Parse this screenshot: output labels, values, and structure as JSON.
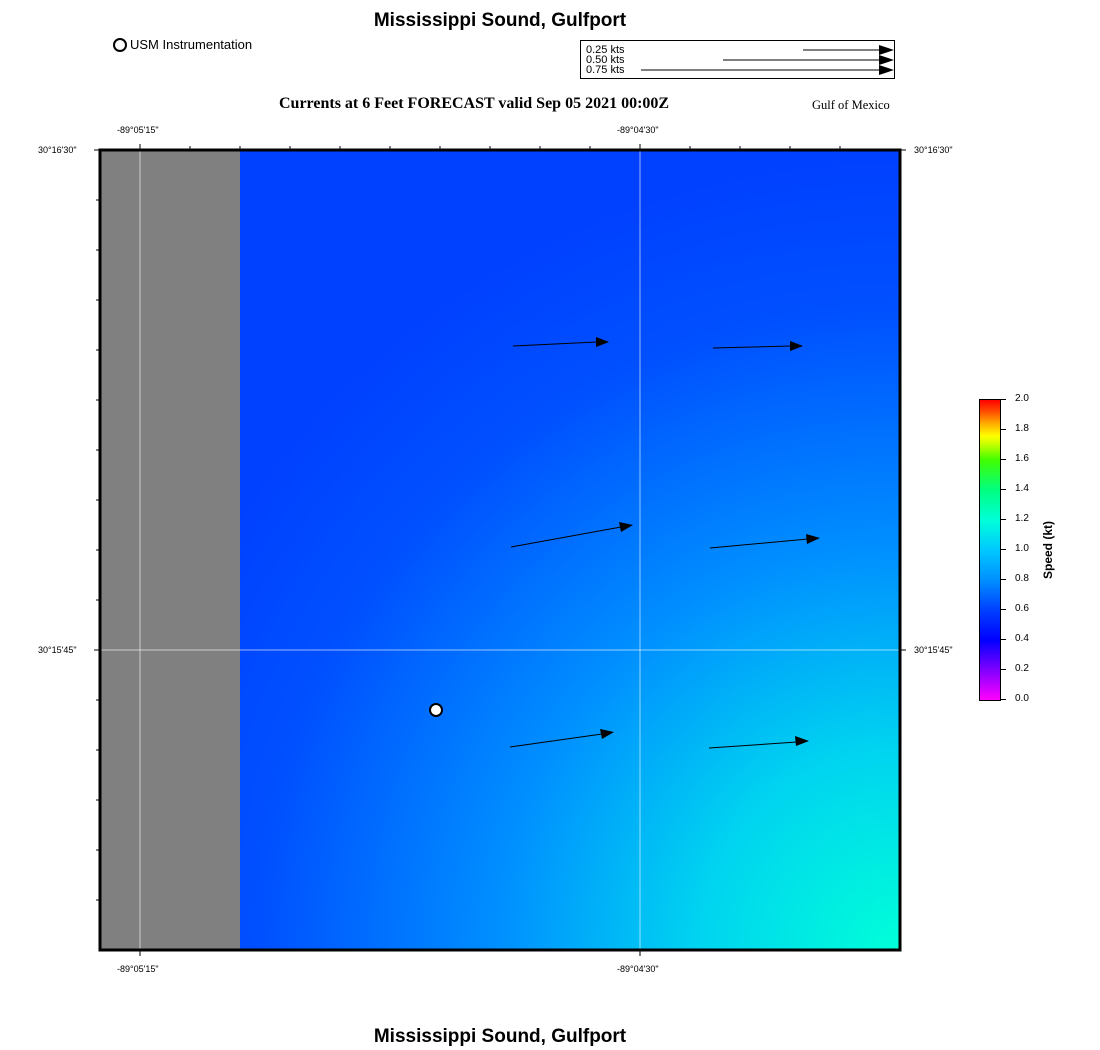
{
  "header": {
    "title": "Mississippi Sound, Gulfport",
    "forecast_title": "Currents at 6 Feet FORECAST valid Sep 05 2021 00:00Z",
    "region_label": "Gulf of Mexico"
  },
  "legend": {
    "usm_label": "USM Instrumentation"
  },
  "reference_vectors": [
    {
      "label": "0.25 kts",
      "speed_kts": 0.25
    },
    {
      "label": "0.50 kts",
      "speed_kts": 0.5
    },
    {
      "label": "0.75 kts",
      "speed_kts": 0.75
    }
  ],
  "axes": {
    "lon_ticks": [
      "-89°05'15\"",
      "-89°04'30\""
    ],
    "lat_ticks": [
      "30°16'30\"",
      "30°15'45\""
    ]
  },
  "colorbar": {
    "title": "Speed (kt)",
    "ticks": [
      "0.0",
      "0.2",
      "0.4",
      "0.6",
      "0.8",
      "1.0",
      "1.2",
      "1.4",
      "1.6",
      "1.8",
      "2.0"
    ]
  },
  "footer": {
    "title": "Mississippi Sound, Gulfport"
  },
  "colors": {
    "land": "#808080",
    "water_low": "#0040ff",
    "water_high": "#00ffd8"
  }
}
